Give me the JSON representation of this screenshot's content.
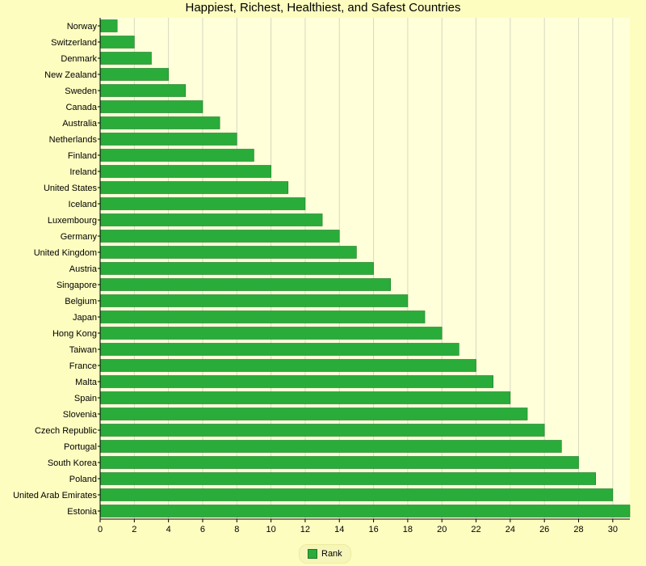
{
  "chart_data": {
    "type": "bar",
    "orientation": "horizontal",
    "title": "Happiest, Richest, Healthiest, and Safest Countries",
    "xlabel": "",
    "ylabel": "",
    "xlim": [
      0,
      31
    ],
    "x_ticks": [
      0,
      2,
      4,
      6,
      8,
      10,
      12,
      14,
      16,
      18,
      20,
      22,
      24,
      26,
      28,
      30
    ],
    "grid": true,
    "legend_position": "bottom-center",
    "categories": [
      "Norway",
      "Switzerland",
      "Denmark",
      "New Zealand",
      "Sweden",
      "Canada",
      "Australia",
      "Netherlands",
      "Finland",
      "Ireland",
      "United States",
      "Iceland",
      "Luxembourg",
      "Germany",
      "United Kingdom",
      "Austria",
      "Singapore",
      "Belgium",
      "Japan",
      "Hong Kong",
      "Taiwan",
      "France",
      "Malta",
      "Spain",
      "Slovenia",
      "Czech Republic",
      "Portugal",
      "South Korea",
      "Poland",
      "United Arab Emirates",
      "Estonia"
    ],
    "series": [
      {
        "name": "Rank",
        "color": "#2aac3a",
        "values": [
          1,
          2,
          3,
          4,
          5,
          6,
          7,
          8,
          9,
          10,
          11,
          12,
          13,
          14,
          15,
          16,
          17,
          18,
          19,
          20,
          21,
          22,
          23,
          24,
          25,
          26,
          27,
          28,
          29,
          30,
          31
        ]
      }
    ]
  },
  "colors": {
    "page_background": "#fdfdc0",
    "plot_background": "#ffffd9",
    "bar": "#2aac3a",
    "bar_stroke": "#1c7a28",
    "grid": "#d8d8c0"
  }
}
